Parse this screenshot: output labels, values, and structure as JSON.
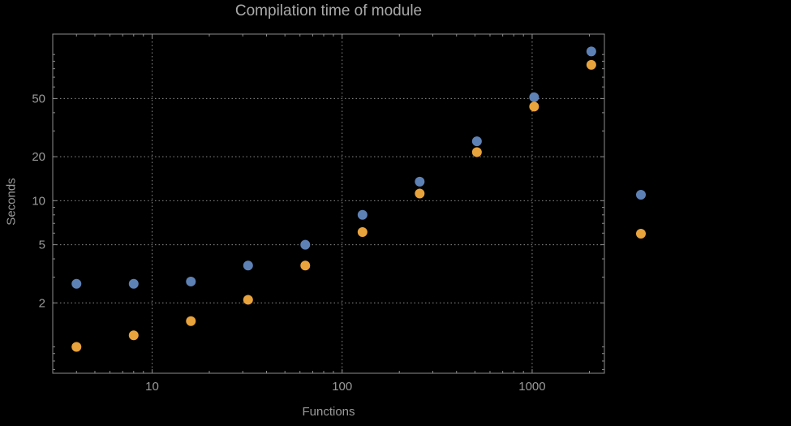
{
  "colors": {
    "background": "#000000",
    "text": "#9a9a9a",
    "title_text": "#a9a9a9",
    "frame": "#8c8c8c",
    "grid": "#8a8a8a",
    "series_blue": "#5e81b5",
    "series_orange": "#e8a33d"
  },
  "chart_data": {
    "type": "scatter",
    "title": "Compilation time of module",
    "xlabel": "Functions",
    "ylabel": "Seconds",
    "x_scale": "log",
    "y_scale": "log",
    "xlim": [
      3.0,
      2400
    ],
    "ylim": [
      0.66,
      138
    ],
    "grid": "dotted major gridlines at labeled ticks, frame on all four sides, ticks pointing inward",
    "x": [
      4,
      8,
      16,
      32,
      64,
      128,
      256,
      512,
      1024,
      2048
    ],
    "series": [
      {
        "name": "blue",
        "color": "#5e81b5",
        "values": [
          2.7,
          2.7,
          2.8,
          3.6,
          5.0,
          8.0,
          13.5,
          25.5,
          51,
          105
        ]
      },
      {
        "name": "orange",
        "color": "#e8a33d",
        "values": [
          1.0,
          1.2,
          1.5,
          2.1,
          3.6,
          6.1,
          11.2,
          21.5,
          44,
          85
        ]
      }
    ],
    "x_ticks": {
      "major": [
        10,
        100,
        1000
      ],
      "labels": [
        "10",
        "100",
        "1000"
      ],
      "minor": [
        4,
        5,
        6,
        7,
        8,
        9,
        20,
        30,
        40,
        50,
        60,
        70,
        80,
        90,
        200,
        300,
        400,
        500,
        600,
        700,
        800,
        900,
        2000
      ]
    },
    "y_ticks": {
      "major": [
        2,
        5,
        10,
        20,
        50
      ],
      "labels": [
        "2",
        "5",
        "10",
        "20",
        "50"
      ],
      "minor": [
        0.7,
        0.8,
        0.9,
        1,
        3,
        4,
        6,
        7,
        8,
        9,
        30,
        40,
        60,
        70,
        80,
        90,
        100
      ]
    },
    "grid_x": [
      10,
      100,
      1000
    ],
    "grid_y": [
      2,
      5,
      10,
      20,
      50
    ],
    "legend": {
      "position": "outside-right",
      "markers": [
        {
          "name": "blue-marker",
          "color": "#5e81b5"
        },
        {
          "name": "orange-marker",
          "color": "#e8a33d"
        }
      ]
    }
  }
}
